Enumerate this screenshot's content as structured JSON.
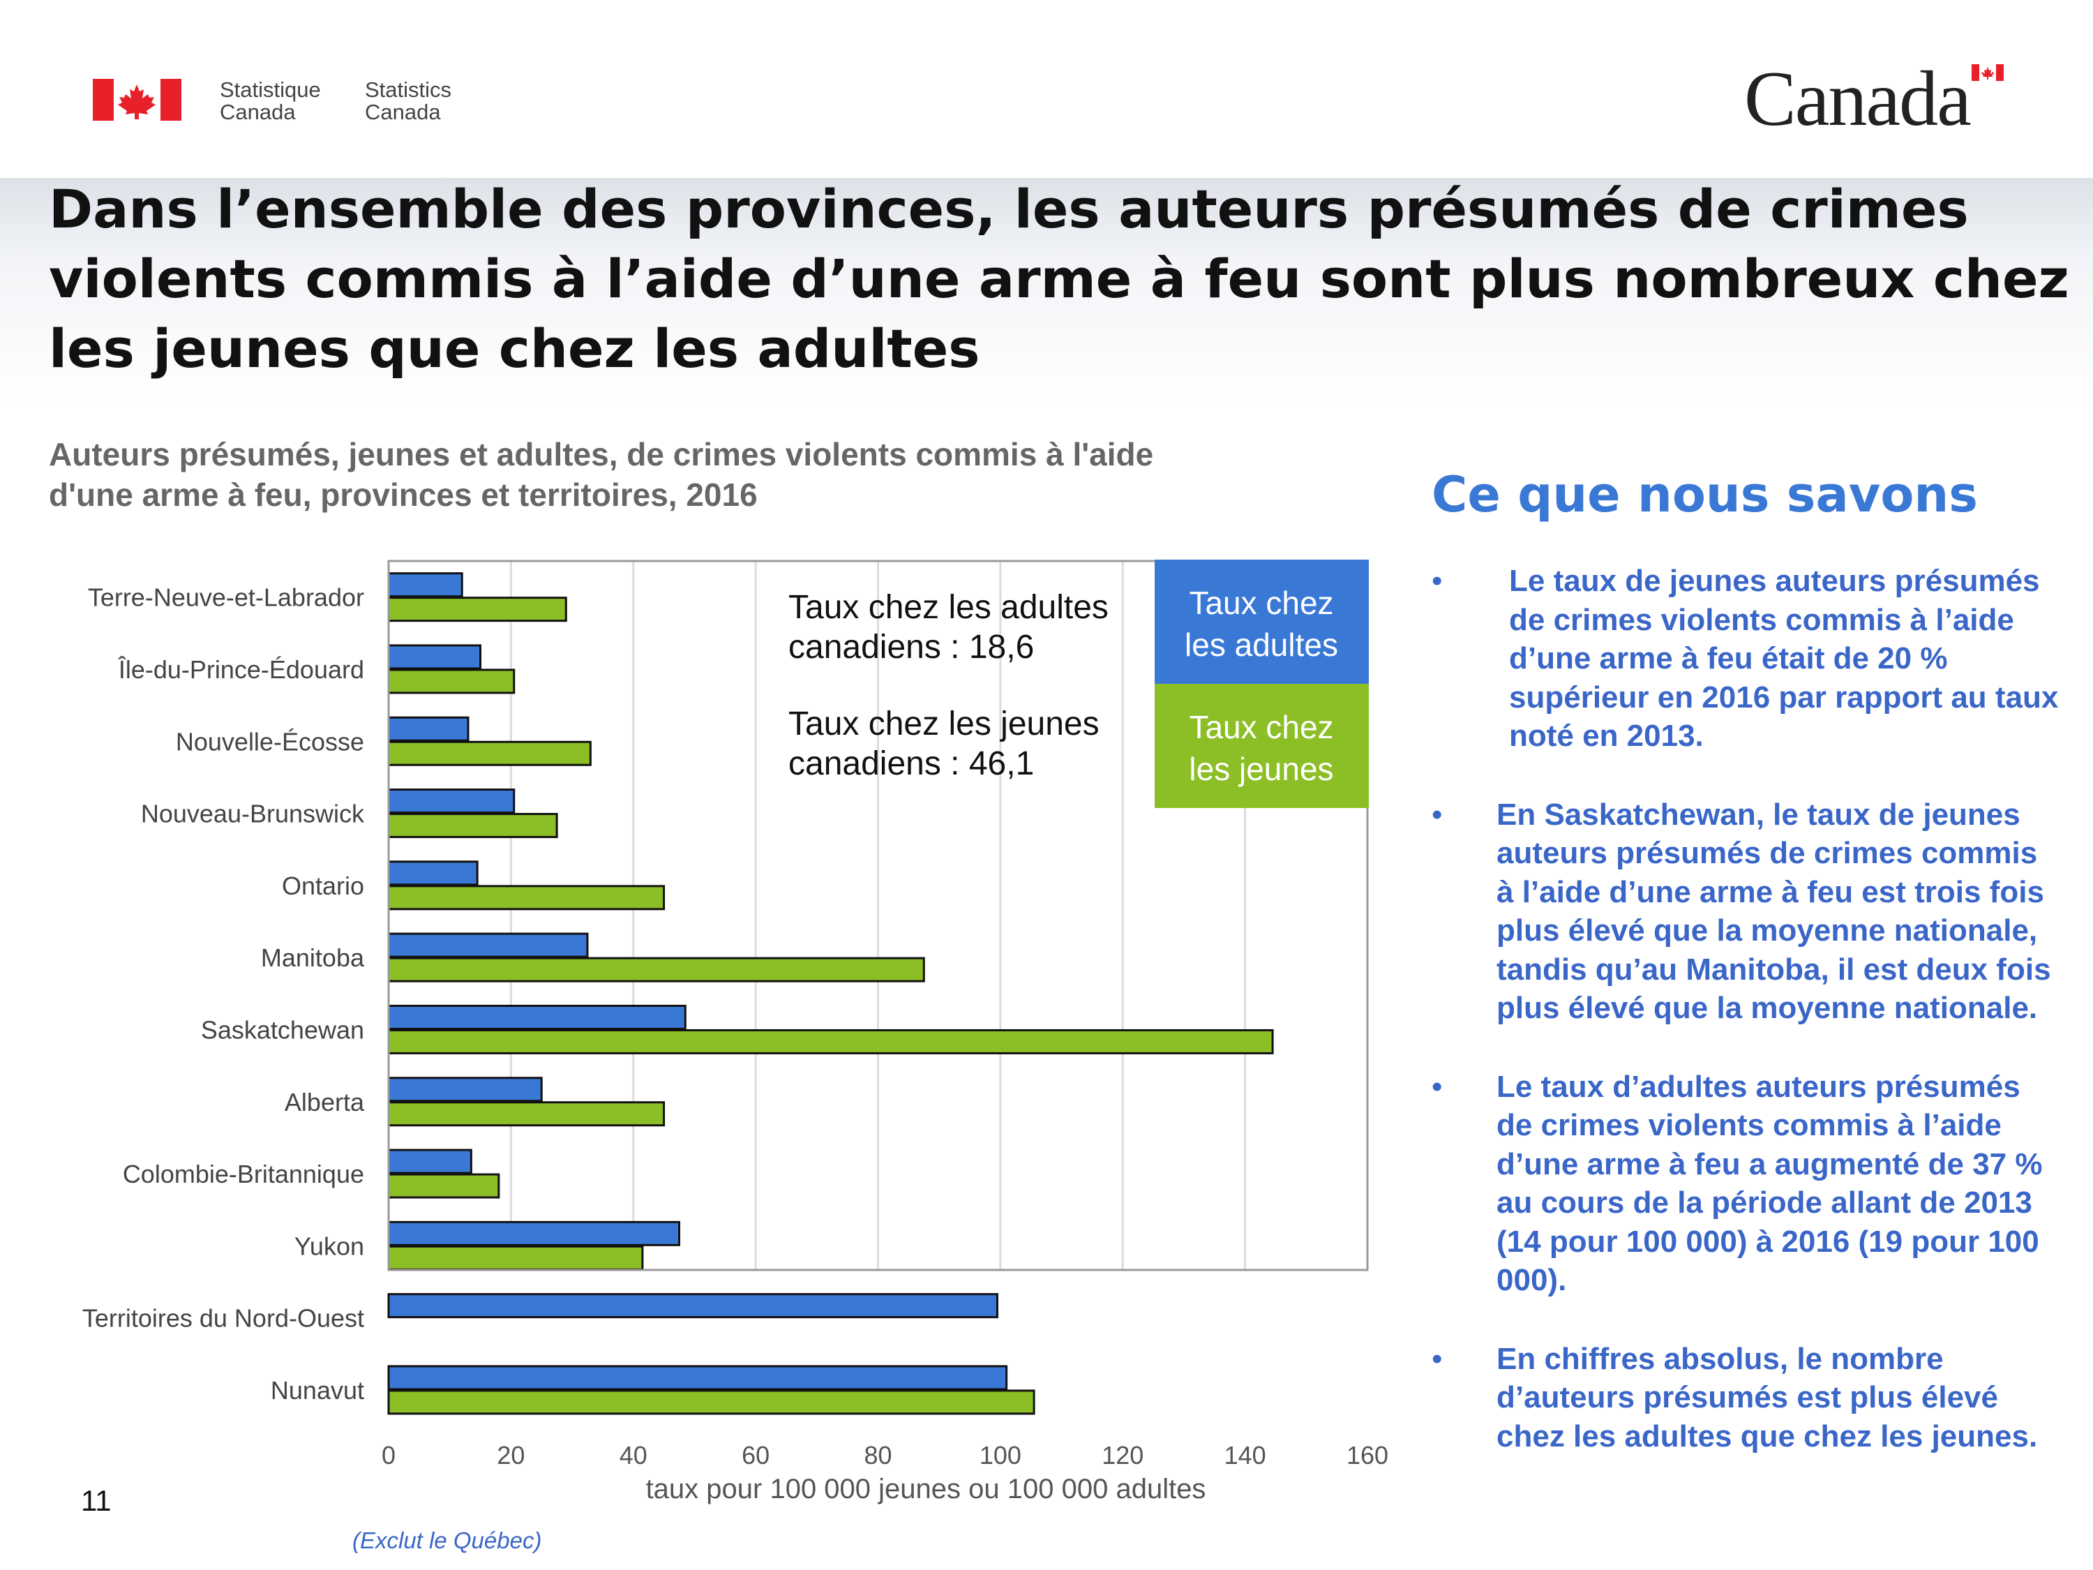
{
  "header": {
    "org_fr_line1": "Statistique",
    "org_fr_line2": "Canada",
    "org_en_line1": "Statistics",
    "org_en_line2": "Canada",
    "wordmark": "Canada"
  },
  "slide": {
    "title": "Dans l’ensemble des provinces, les auteurs présumés de crimes violents commis à l’aide d’une arme à feu sont plus nombreux chez les jeunes que chez les adultes",
    "page_number": "11",
    "footnote": "(Exclut le Québec)"
  },
  "side_panel": {
    "heading": "Ce que nous savons",
    "bullets": [
      "Le taux de jeunes auteurs présumés de crimes violents commis à l’aide d’une arme à feu était de 20 % supérieur en 2016 par rapport au taux noté en 2013.",
      "En Saskatchewan, le taux de jeunes auteurs présumés de crimes commis à l’aide d’une arme à feu est trois fois plus élevé que la moyenne nationale, tandis qu’au Manitoba, il est deux fois plus élevé que la moyenne nationale.",
      "Le taux d’adultes auteurs présumés de crimes violents commis à l’aide d’une arme à feu a augmenté de 37 % au cours de la période allant de 2013 (14 pour 100 000) à 2016 (19 pour 100 000).",
      "En chiffres absolus, le nombre d’auteurs présumés est plus élevé chez les adultes que chez les jeunes."
    ]
  },
  "chart_data": {
    "type": "bar",
    "orientation": "horizontal",
    "title": "Auteurs présumés, jeunes et adultes, de crimes violents commis à l'aide d'une arme à feu, provinces et territoires, 2016",
    "xlabel": "taux pour 100 000 jeunes ou 100 000 adultes",
    "ylabel": "",
    "xlim": [
      0,
      160
    ],
    "xticks": [
      "0",
      "20",
      "40",
      "60",
      "80",
      "100",
      "120",
      "140",
      "160"
    ],
    "grid": true,
    "categories": [
      "Terre-Neuve-et-Labrador",
      "Île-du-Prince-Édouard",
      "Nouvelle-Écosse",
      "Nouveau-Brunswick",
      "Ontario",
      "Manitoba",
      "Saskatchewan",
      "Alberta",
      "Colombie-Britannique",
      "Yukon",
      "Territoires du Nord-Ouest",
      "Nunavut"
    ],
    "series": [
      {
        "name": "Taux chez les adultes",
        "color": "#3a78d6",
        "values": [
          12,
          15,
          13,
          20.5,
          14.5,
          32.5,
          48.5,
          25,
          13.5,
          47.5,
          99.5,
          101
        ]
      },
      {
        "name": "Taux chez les jeunes",
        "color": "#8cbf26",
        "values": [
          29,
          20.5,
          33,
          27.5,
          45,
          87.5,
          144.5,
          45,
          18,
          41.5,
          0,
          105.5
        ]
      }
    ],
    "legend": {
      "placement": "top-right",
      "labels": [
        "Taux chez les adultes",
        "Taux chez les jeunes"
      ]
    },
    "annotations": [
      {
        "line1": "Taux chez les adultes",
        "line2": "canadiens : 18,6"
      },
      {
        "line1": "Taux chez les jeunes",
        "line2": "canadiens : 46,1"
      }
    ]
  }
}
